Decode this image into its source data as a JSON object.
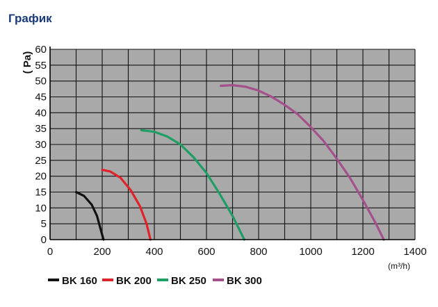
{
  "page": {
    "title": "График"
  },
  "chart_data": {
    "type": "line",
    "ylabel": "( Pa)",
    "xlabel": "(m³/h)",
    "xlim": [
      0,
      1400
    ],
    "ylim": [
      0,
      60
    ],
    "x_ticks": [
      0,
      200,
      400,
      600,
      800,
      1000,
      1200,
      1400
    ],
    "y_ticks": [
      0,
      5,
      10,
      15,
      20,
      25,
      30,
      35,
      40,
      45,
      50,
      55,
      60
    ],
    "grid": true,
    "background": "#a9a9a9",
    "legend_position": "bottom-left",
    "series": [
      {
        "name": "BK 160",
        "color": "#111111",
        "points": [
          [
            100,
            15
          ],
          [
            130,
            13.8
          ],
          [
            160,
            11
          ],
          [
            180,
            7.5
          ],
          [
            195,
            3
          ],
          [
            205,
            0
          ]
        ]
      },
      {
        "name": "BK 200",
        "color": "#e0232a",
        "points": [
          [
            200,
            22
          ],
          [
            230,
            21.5
          ],
          [
            270,
            19.5
          ],
          [
            310,
            15.5
          ],
          [
            345,
            10.5
          ],
          [
            370,
            5
          ],
          [
            385,
            0
          ]
        ]
      },
      {
        "name": "BK 250",
        "color": "#1e9e64",
        "points": [
          [
            350,
            34.5
          ],
          [
            400,
            34
          ],
          [
            450,
            32.5
          ],
          [
            500,
            30
          ],
          [
            550,
            26
          ],
          [
            600,
            21
          ],
          [
            650,
            14.5
          ],
          [
            700,
            7.5
          ],
          [
            745,
            0
          ]
        ]
      },
      {
        "name": "BK 300",
        "color": "#a4508c",
        "points": [
          [
            655,
            48.5
          ],
          [
            700,
            48.7
          ],
          [
            750,
            48.2
          ],
          [
            800,
            47
          ],
          [
            850,
            45
          ],
          [
            900,
            42.5
          ],
          [
            950,
            39.5
          ],
          [
            1000,
            35.5
          ],
          [
            1050,
            31
          ],
          [
            1100,
            25.5
          ],
          [
            1150,
            19.5
          ],
          [
            1200,
            12.5
          ],
          [
            1250,
            5
          ],
          [
            1280,
            0
          ]
        ]
      }
    ]
  }
}
